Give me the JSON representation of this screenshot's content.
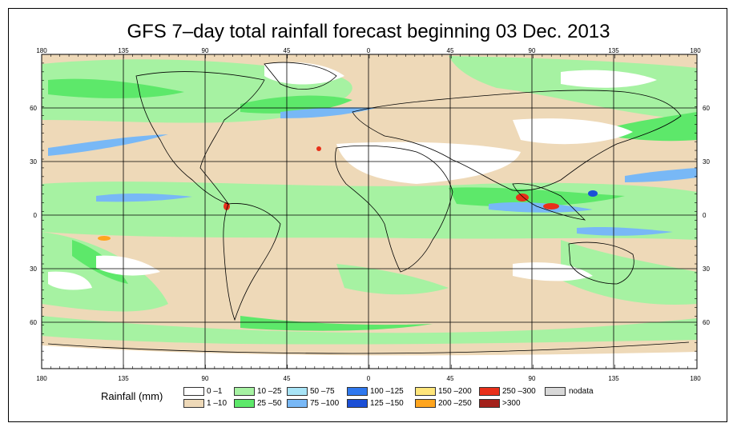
{
  "title": "GFS 7–day total rainfall forecast beginning 03 Dec. 2013",
  "lon_ticks": [
    "180",
    "135",
    "90",
    "45",
    "0",
    "45",
    "90",
    "135",
    "180"
  ],
  "lat_ticks": [
    "60",
    "30",
    "0",
    "30",
    "60"
  ],
  "legend": {
    "title": "Rainfall (mm)",
    "classes": [
      {
        "label": "0 –1",
        "color": "#ffffff"
      },
      {
        "label": "1 –10",
        "color": "#eed9b8"
      },
      {
        "label": "10 –25",
        "color": "#a6f2a2"
      },
      {
        "label": "25 –50",
        "color": "#5de86a"
      },
      {
        "label": "50 –75",
        "color": "#a8e4f7"
      },
      {
        "label": "75 –100",
        "color": "#78b8f6"
      },
      {
        "label": "100 –125",
        "color": "#2f78ee"
      },
      {
        "label": "125 –150",
        "color": "#1b4fd6"
      },
      {
        "label": "150 –200",
        "color": "#ffe57a"
      },
      {
        "label": "200 –250",
        "color": "#ffa51e"
      },
      {
        "label": "250 –300",
        "color": "#e8301a"
      },
      {
        "label": ">300",
        "color": "#a3211b"
      },
      {
        "label": "nodata",
        "color": "#d8d8d8"
      }
    ]
  }
}
